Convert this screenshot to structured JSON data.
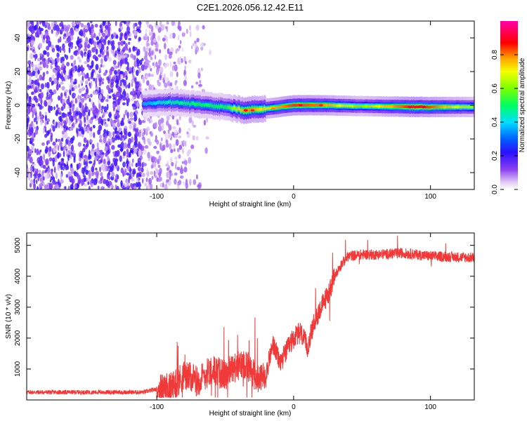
{
  "title": "C2E1.2026.056.12.42.E11",
  "chart_data": [
    {
      "type": "heatmap",
      "title": "C2E1.2026.056.12.42.E11",
      "xlabel": "Height of straight line (km)",
      "ylabel": "Frequency (Hz)",
      "xlim": [
        -195,
        132
      ],
      "ylim": [
        -50,
        50
      ],
      "xticks": [
        -100,
        0,
        100
      ],
      "xtick_labels": [
        "-100",
        "0",
        "100"
      ],
      "yticks": [
        -40,
        -20,
        0,
        20,
        40
      ],
      "ytick_labels": [
        "-40",
        "-20",
        "0",
        "20",
        "40"
      ],
      "colorbar": {
        "label": "Normalized spectral amplitude",
        "range": [
          0,
          1
        ],
        "ticks": [
          0.0,
          0.2,
          0.4,
          0.6,
          0.8
        ],
        "tick_labels": [
          "0.0",
          "0.2",
          "0.4",
          "0.6",
          "0.8"
        ]
      },
      "ridge": [
        {
          "x": -110,
          "f": 1.0,
          "amp": 0.35
        },
        {
          "x": -90,
          "f": 2.0,
          "amp": 0.45
        },
        {
          "x": -70,
          "f": 0.5,
          "amp": 0.5
        },
        {
          "x": -50,
          "f": -1.0,
          "amp": 0.5
        },
        {
          "x": -35,
          "f": -3.0,
          "amp": 0.8
        },
        {
          "x": -20,
          "f": -2.0,
          "amp": 0.7
        },
        {
          "x": 0,
          "f": 0.0,
          "amp": 0.85
        },
        {
          "x": 20,
          "f": 0.0,
          "amp": 0.8
        },
        {
          "x": 50,
          "f": -0.5,
          "amp": 0.6
        },
        {
          "x": 90,
          "f": -1.0,
          "amp": 0.9
        },
        {
          "x": 132,
          "f": -1.0,
          "amp": 0.6
        }
      ]
    },
    {
      "type": "line",
      "xlabel": "Height of straight line (km)",
      "ylabel": "SNR (10 * v/v)",
      "xlim": [
        -195,
        132
      ],
      "ylim": [
        0,
        5400
      ],
      "xticks": [
        -100,
        0,
        100
      ],
      "xtick_labels": [
        "-100",
        "0",
        "100"
      ],
      "yticks": [
        1000,
        2000,
        3000,
        4000,
        5000
      ],
      "ytick_labels": [
        "1000",
        "2000",
        "3000",
        "4000",
        "5000"
      ],
      "color": "#f03a3a",
      "series": [
        {
          "name": "SNR",
          "x": [
            -195,
            -150,
            -110,
            -100,
            -90,
            -80,
            -70,
            -60,
            -50,
            -45,
            -40,
            -35,
            -30,
            -25,
            -20,
            -15,
            -10,
            -5,
            0,
            5,
            10,
            15,
            20,
            25,
            30,
            35,
            40,
            50,
            60,
            80,
            100,
            132
          ],
          "values": [
            250,
            250,
            250,
            350,
            400,
            800,
            600,
            1000,
            800,
            1000,
            1100,
            1200,
            900,
            600,
            900,
            1800,
            1200,
            1600,
            2000,
            2200,
            1700,
            2500,
            3000,
            3400,
            4000,
            4400,
            4650,
            4700,
            4700,
            4750,
            4650,
            4600
          ]
        }
      ]
    }
  ]
}
